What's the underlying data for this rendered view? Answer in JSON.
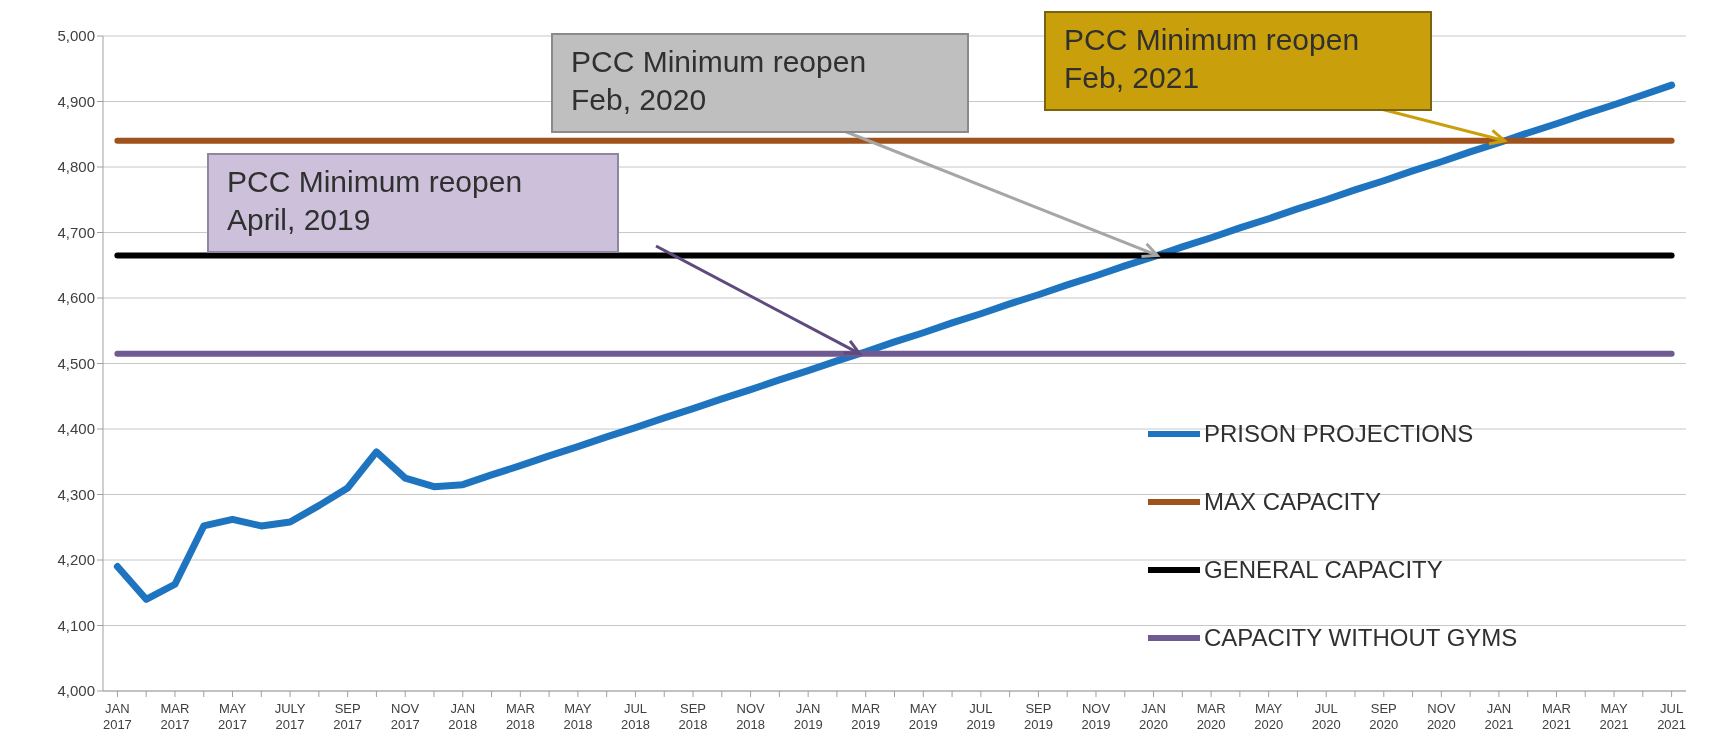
{
  "chart_data": {
    "type": "line",
    "categories": [
      "JAN 2017",
      null,
      "MAR 2017",
      null,
      "MAY 2017",
      null,
      "JULY 2017",
      null,
      "SEP 2017",
      null,
      "NOV 2017",
      null,
      "JAN 2018",
      null,
      "MAR 2018",
      null,
      "MAY 2018",
      null,
      "JUL 2018",
      null,
      "SEP 2018",
      null,
      "NOV 2018",
      null,
      "JAN 2019",
      null,
      "MAR 2019",
      null,
      "MAY 2019",
      null,
      "JUL 2019",
      null,
      "SEP 2019",
      null,
      "NOV 2019",
      null,
      "JAN 2020",
      null,
      "MAR 2020",
      null,
      "MAY 2020",
      null,
      "JUL 2020",
      null,
      "SEP 2020",
      null,
      "NOV 2020",
      null,
      "JAN 2021",
      null,
      "MAR 2021",
      null,
      "MAY 2021",
      null,
      "JUL 2021"
    ],
    "series": [
      {
        "name": "PRISON PROJECTIONS",
        "color": "#1f74bf",
        "values": [
          4190,
          4140,
          4163,
          4252,
          4262,
          4252,
          4258,
          4283,
          4310,
          4365,
          4325,
          4312,
          4315,
          4330,
          4344,
          4359,
          4373,
          4388,
          4402,
          4417,
          4431,
          4446,
          4460,
          4475,
          4489,
          4504,
          4518,
          4533,
          4547,
          4562,
          4576,
          4591,
          4605,
          4620,
          4634,
          4649,
          4663,
          4678,
          4692,
          4707,
          4721,
          4736,
          4750,
          4765,
          4779,
          4794,
          4808,
          4823,
          4837,
          4852,
          4866,
          4881,
          4895,
          4910,
          4925
        ]
      },
      {
        "name": "MAX CAPACITY",
        "color": "#a0521c",
        "values": [
          4840,
          4840,
          4840,
          4840,
          4840,
          4840,
          4840,
          4840,
          4840,
          4840,
          4840,
          4840,
          4840,
          4840,
          4840,
          4840,
          4840,
          4840,
          4840,
          4840,
          4840,
          4840,
          4840,
          4840,
          4840,
          4840,
          4840,
          4840,
          4840,
          4840,
          4840,
          4840,
          4840,
          4840,
          4840,
          4840,
          4840,
          4840,
          4840,
          4840,
          4840,
          4840,
          4840,
          4840,
          4840,
          4840,
          4840,
          4840,
          4840,
          4840,
          4840,
          4840,
          4840,
          4840,
          4840
        ]
      },
      {
        "name": "GENERAL CAPACITY",
        "color": "#000000",
        "values": [
          4665,
          4665,
          4665,
          4665,
          4665,
          4665,
          4665,
          4665,
          4665,
          4665,
          4665,
          4665,
          4665,
          4665,
          4665,
          4665,
          4665,
          4665,
          4665,
          4665,
          4665,
          4665,
          4665,
          4665,
          4665,
          4665,
          4665,
          4665,
          4665,
          4665,
          4665,
          4665,
          4665,
          4665,
          4665,
          4665,
          4665,
          4665,
          4665,
          4665,
          4665,
          4665,
          4665,
          4665,
          4665,
          4665,
          4665,
          4665,
          4665,
          4665,
          4665,
          4665,
          4665,
          4665,
          4665
        ]
      },
      {
        "name": "CAPACITY WITHOUT GYMS",
        "color": "#6f5a92",
        "values": [
          4515,
          4515,
          4515,
          4515,
          4515,
          4515,
          4515,
          4515,
          4515,
          4515,
          4515,
          4515,
          4515,
          4515,
          4515,
          4515,
          4515,
          4515,
          4515,
          4515,
          4515,
          4515,
          4515,
          4515,
          4515,
          4515,
          4515,
          4515,
          4515,
          4515,
          4515,
          4515,
          4515,
          4515,
          4515,
          4515,
          4515,
          4515,
          4515,
          4515,
          4515,
          4515,
          4515,
          4515,
          4515,
          4515,
          4515,
          4515,
          4515,
          4515,
          4515,
          4515,
          4515,
          4515,
          4515
        ]
      }
    ],
    "ylim": [
      4000,
      5000
    ],
    "yticks": [
      {
        "value": 4000,
        "label": "4,000"
      },
      {
        "value": 4100,
        "label": "4,100"
      },
      {
        "value": 4200,
        "label": "4,200"
      },
      {
        "value": 4300,
        "label": "4,300"
      },
      {
        "value": 4400,
        "label": "4,400"
      },
      {
        "value": 4500,
        "label": "4,500"
      },
      {
        "value": 4600,
        "label": "4,600"
      },
      {
        "value": 4700,
        "label": "4,700"
      },
      {
        "value": 4800,
        "label": "4,800"
      },
      {
        "value": 4900,
        "label": "4,900"
      },
      {
        "value": 5000,
        "label": "5,000"
      }
    ],
    "grid": "y",
    "legend": "bottom right",
    "marker": "none",
    "line_style": "solid",
    "annotations": [
      "PCC Minimum reopen April, 2019",
      "PCC Minimum reopen Feb, 2020",
      "PCC Minimum reopen Feb, 2021"
    ]
  }
}
